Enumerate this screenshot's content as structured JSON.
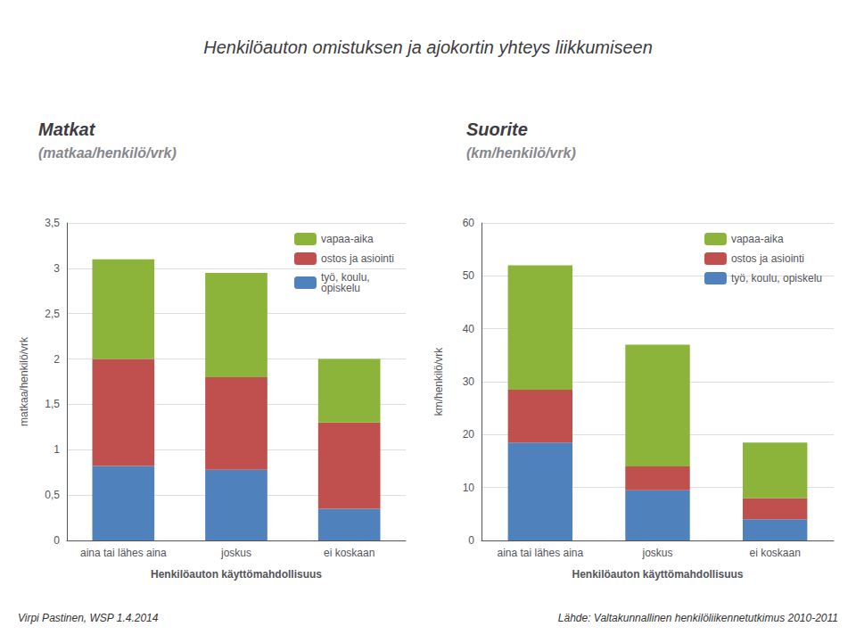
{
  "title": "Henkilöauton omistuksen ja ajokortin yhteys liikkumiseen",
  "annotations": [
    "Virpi Pastinen, WSP 1.4.2014",
    "Lähde: Valtakunnallinen henkilöliikennetutkimus 2010-2011"
  ],
  "chart_data": [
    {
      "type": "bar",
      "stacked": true,
      "title": "Matkat",
      "subtitle": "(matkaa/henkilö/vrk)",
      "categories": [
        "aina tai lähes aina",
        "joskus",
        "ei koskaan"
      ],
      "xlabel": "Henkilöauton käyttömahdollisuus",
      "ylabel": "matkaa/henkilö/vrk",
      "series": [
        {
          "name": "työ, koulu,\nopiskelu",
          "color": "#4F81BD",
          "values": [
            0.82,
            0.78,
            0.35
          ]
        },
        {
          "name": "ostos ja asiointi",
          "color": "#C0504D",
          "values": [
            1.18,
            1.02,
            0.95
          ]
        },
        {
          "name": "vapaa-aika",
          "color": "#8DB43A",
          "values": [
            1.1,
            1.15,
            0.7
          ]
        }
      ],
      "ylim": [
        0,
        3.5
      ],
      "yticks": [
        0,
        {
          "value": 0.5,
          "label": "0,5"
        },
        1,
        {
          "value": 1.5,
          "label": "1,5"
        },
        2,
        {
          "value": 2.5,
          "label": "2,5"
        },
        3,
        {
          "value": 3.5,
          "label": "3,5"
        }
      ],
      "grid": true,
      "legend": "upper right"
    },
    {
      "type": "bar",
      "stacked": true,
      "title": "Suorite",
      "subtitle": "(km/henkilö/vrk)",
      "categories": [
        "aina tai lähes aina",
        "joskus",
        "ei koskaan"
      ],
      "xlabel": "Henkilöauton käyttömahdollisuus",
      "ylabel": "km/henkilö/vrk",
      "series": [
        {
          "name": "työ, koulu, opiskelu",
          "color": "#4F81BD",
          "values": [
            18.5,
            9.5,
            4.0
          ]
        },
        {
          "name": "ostos ja asiointi",
          "color": "#C0504D",
          "values": [
            10.0,
            4.5,
            4.0
          ]
        },
        {
          "name": "vapaa-aika",
          "color": "#8DB43A",
          "values": [
            23.5,
            23.0,
            10.5
          ]
        }
      ],
      "ylim": [
        0,
        60
      ],
      "yticks": [
        0,
        10,
        20,
        30,
        40,
        50,
        60
      ],
      "grid": true,
      "legend": "upper right"
    }
  ]
}
